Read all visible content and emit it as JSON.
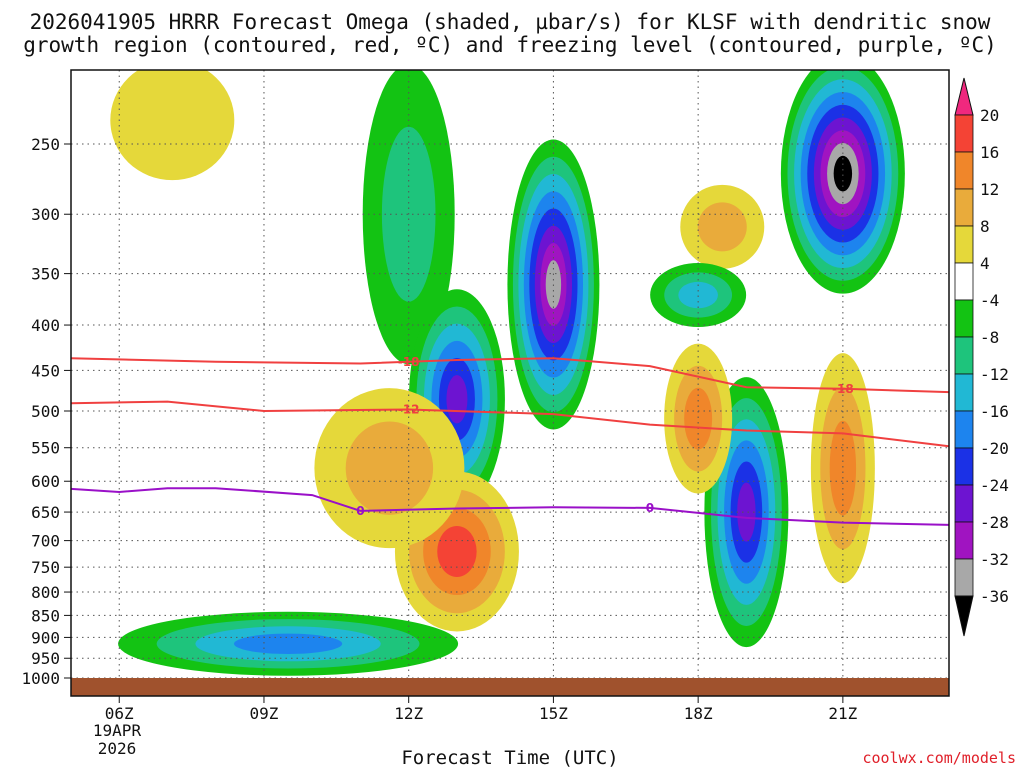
{
  "chart_data": {
    "type": "contour",
    "title_line1": "2026041905 HRRR Forecast Omega (shaded, µbar/s) for KLSF with dendritic snow",
    "title_line2": "growth region (contoured, red, ºC) and freezing level (contoured, purple, ºC)",
    "xlabel": "Forecast Time (UTC)",
    "x_ticks": [
      {
        "hour": 6,
        "label": "06Z"
      },
      {
        "hour": 9,
        "label": "09Z"
      },
      {
        "hour": 12,
        "label": "12Z"
      },
      {
        "hour": 15,
        "label": "15Z"
      },
      {
        "hour": 18,
        "label": "18Z"
      },
      {
        "hour": 21,
        "label": "21Z"
      }
    ],
    "date_line1": "19APR",
    "date_line2": "2026",
    "x_range": [
      5,
      23.2
    ],
    "y_axis": "pressure (hPa)",
    "y_ticks": [
      250,
      300,
      350,
      400,
      450,
      500,
      550,
      600,
      650,
      700,
      750,
      800,
      850,
      900,
      950,
      1000
    ],
    "colorbar": {
      "labels": [
        "20",
        "16",
        "12",
        "8",
        "4",
        "-4",
        "-8",
        "-12",
        "-16",
        "-20",
        "-24",
        "-28",
        "-32",
        "-36"
      ],
      "colors": [
        "#f7297f",
        "#f44335",
        "#f0862a",
        "#e9ab3b",
        "#e5d83a",
        "#ffffff",
        "#13c313",
        "#1ec47c",
        "#21b8d4",
        "#1d84ee",
        "#1b31e6",
        "#6d14d1",
        "#a014c1",
        "#a8a8a8",
        "#000000"
      ],
      "top_color": "#f0287e",
      "bottom_color": "#000000"
    },
    "omega_centers": [
      {
        "name": "upper-left-positive",
        "t": 7.1,
        "p": 235,
        "peak": 6
      },
      {
        "name": "12z-upper-negative",
        "t": 12.0,
        "p": 300,
        "peak": -10
      },
      {
        "name": "13z-negative-core",
        "t": 13.0,
        "p": 485,
        "peak": -24
      },
      {
        "name": "15z-negative-core",
        "t": 15.0,
        "p": 360,
        "peak": -32
      },
      {
        "name": "18z-upper-positive",
        "t": 18.5,
        "p": 310,
        "peak": 10
      },
      {
        "name": "17z-negative",
        "t": 18.0,
        "p": 370,
        "peak": -14
      },
      {
        "name": "21z-negative-core",
        "t": 21.0,
        "p": 270,
        "peak": -36
      },
      {
        "name": "13z-low-positive",
        "t": 13.0,
        "p": 720,
        "peak": 18
      },
      {
        "name": "12z-mid-positive",
        "t": 11.6,
        "p": 580,
        "peak": 10
      },
      {
        "name": "19z-negative-core",
        "t": 19.0,
        "p": 650,
        "peak": -24
      },
      {
        "name": "18z-mid-positive",
        "t": 18.0,
        "p": 510,
        "peak": 12
      },
      {
        "name": "21z-mid-positive",
        "t": 21.0,
        "p": 580,
        "peak": 12
      },
      {
        "name": "low-level-negative",
        "t": 9.5,
        "p": 915,
        "peak": -16
      }
    ],
    "dgz_lines": [
      {
        "name": "-18C",
        "label": "-18",
        "label_at": [
          12.0,
          21.0
        ],
        "points": [
          [
            5.0,
            436
          ],
          [
            8.0,
            440
          ],
          [
            11.0,
            442
          ],
          [
            13.0,
            438
          ],
          [
            15.0,
            436
          ],
          [
            17.0,
            445
          ],
          [
            19.0,
            470
          ],
          [
            21.0,
            472
          ],
          [
            23.2,
            476
          ]
        ]
      },
      {
        "name": "-12C",
        "label": "-12",
        "label_at": [
          12.0
        ],
        "points": [
          [
            5.0,
            490
          ],
          [
            7.0,
            488
          ],
          [
            9.0,
            500
          ],
          [
            12.0,
            498
          ],
          [
            15.0,
            504
          ],
          [
            17.0,
            518
          ],
          [
            19.0,
            526
          ],
          [
            21.0,
            530
          ],
          [
            23.2,
            548
          ]
        ]
      }
    ],
    "freezing_level": {
      "name": "0C",
      "label": "0",
      "label_at": [
        11.0,
        17.0
      ],
      "points": [
        [
          5.0,
          612
        ],
        [
          6.0,
          617
        ],
        [
          7.0,
          611
        ],
        [
          8.0,
          611
        ],
        [
          10.0,
          622
        ],
        [
          11.0,
          648
        ],
        [
          13.0,
          644
        ],
        [
          15.0,
          642
        ],
        [
          17.0,
          643
        ],
        [
          19.0,
          660
        ],
        [
          21.0,
          668
        ],
        [
          23.2,
          672
        ]
      ]
    }
  },
  "credit": "coolwx.com/models"
}
